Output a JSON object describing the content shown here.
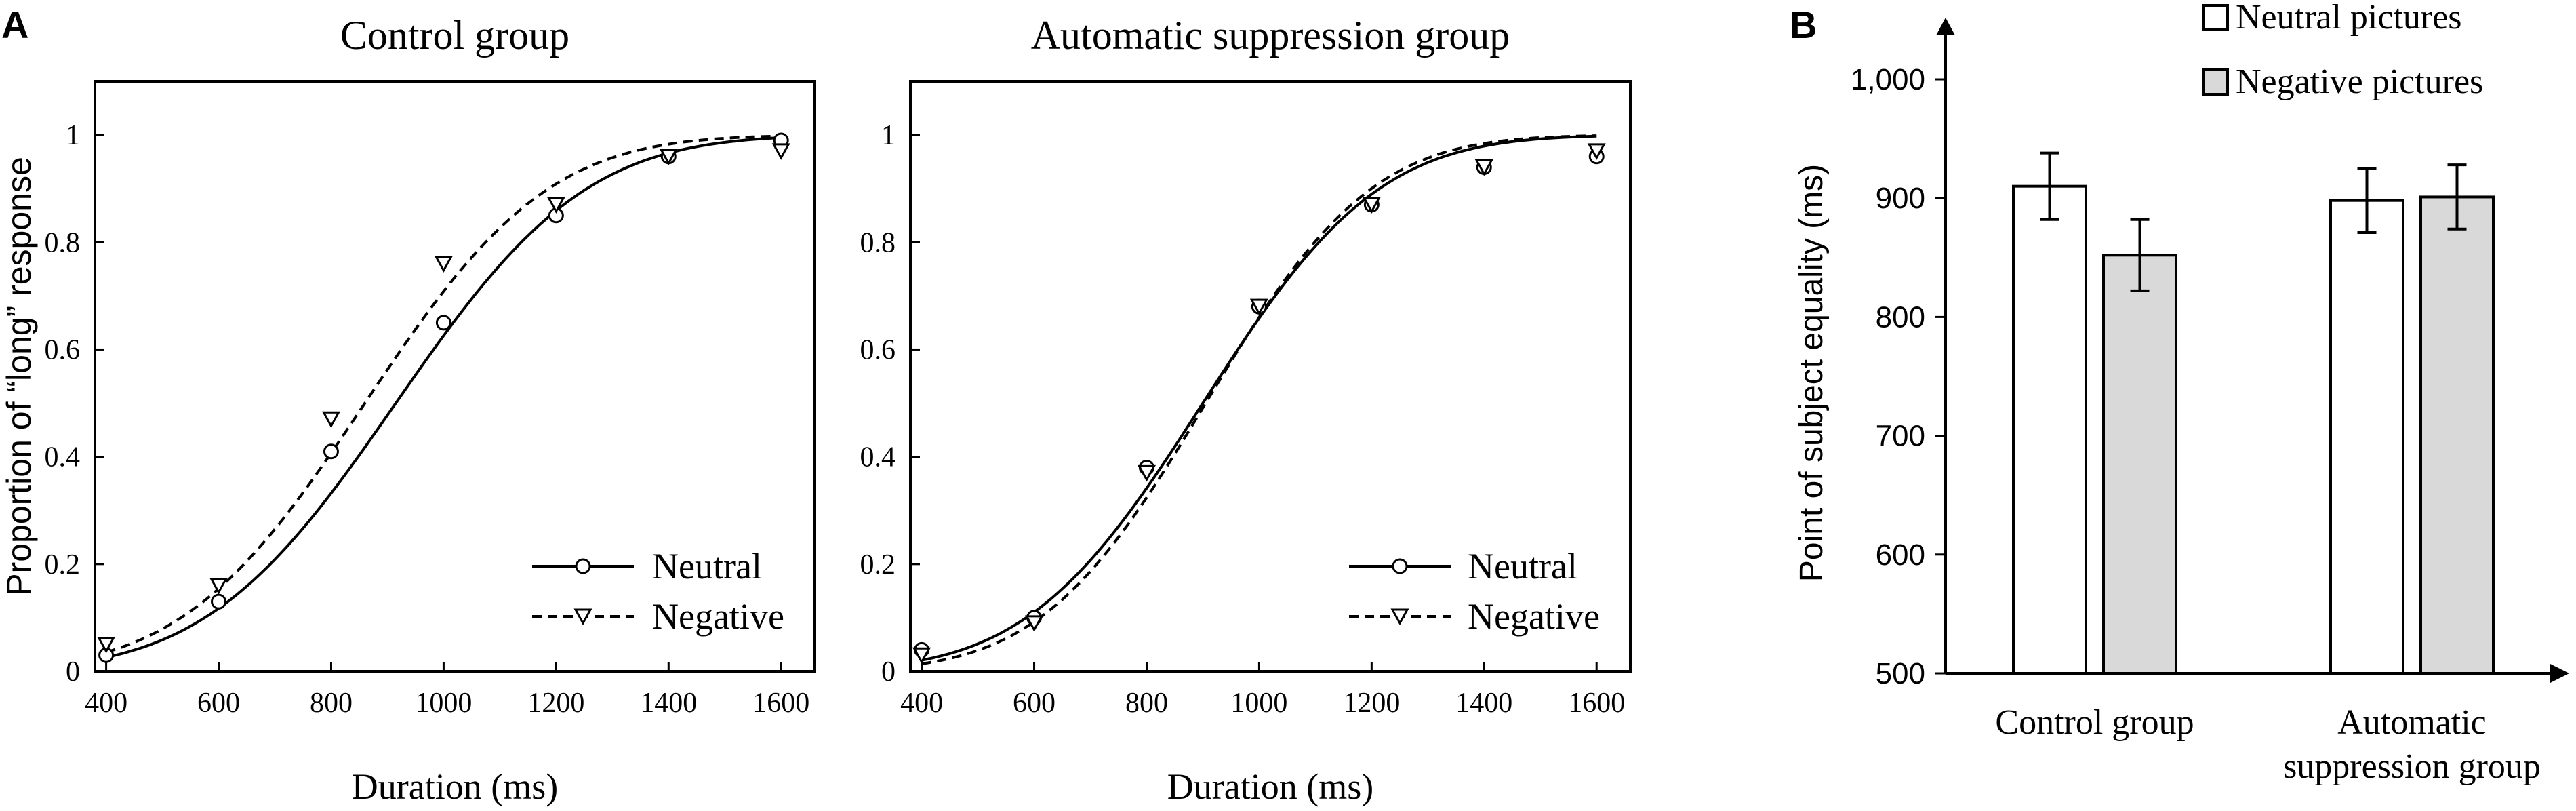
{
  "panel_labels": {
    "a": "A",
    "b": "B"
  },
  "chart_data": [
    {
      "type": "line",
      "title": "Control group",
      "xlabel": "Duration (ms)",
      "ylabel": "Proportion of “long” response",
      "xlim": [
        380,
        1660
      ],
      "ylim": [
        0,
        1.1
      ],
      "xticks": [
        400,
        600,
        800,
        1000,
        1200,
        1400,
        1600
      ],
      "yticks": [
        0,
        0.2,
        0.4,
        0.6,
        0.8,
        1
      ],
      "ytick_labels": [
        "0",
        "0.2",
        "0.4",
        "0.6",
        "0.8",
        "1"
      ],
      "legend_position": "bottom-right",
      "series": [
        {
          "name": "Neutral",
          "line_style": "solid",
          "marker": "circle",
          "points": [
            [
              400,
              0.03
            ],
            [
              600,
              0.13
            ],
            [
              800,
              0.41
            ],
            [
              1000,
              0.65
            ],
            [
              1200,
              0.85
            ],
            [
              1400,
              0.96
            ],
            [
              1600,
              0.99
            ]
          ],
          "fit": {
            "mu": 915,
            "sigma": 265
          }
        },
        {
          "name": "Negative",
          "line_style": "dashed",
          "marker": "triangle-down",
          "points": [
            [
              400,
              0.05
            ],
            [
              600,
              0.16
            ],
            [
              800,
              0.47
            ],
            [
              1000,
              0.76
            ],
            [
              1200,
              0.87
            ],
            [
              1400,
              0.96
            ],
            [
              1600,
              0.97
            ]
          ],
          "fit": {
            "mu": 860,
            "sigma": 255
          }
        }
      ]
    },
    {
      "type": "line",
      "title": "Automatic suppression group",
      "xlabel": "Duration (ms)",
      "ylabel": "",
      "xlim": [
        380,
        1660
      ],
      "ylim": [
        0,
        1.1
      ],
      "xticks": [
        400,
        600,
        800,
        1000,
        1200,
        1400,
        1600
      ],
      "yticks": [
        0,
        0.2,
        0.4,
        0.6,
        0.8,
        1
      ],
      "ytick_labels": [
        "0",
        "0.2",
        "0.4",
        "0.6",
        "0.8",
        "1"
      ],
      "legend_position": "bottom-right",
      "series": [
        {
          "name": "Neutral",
          "line_style": "solid",
          "marker": "circle",
          "points": [
            [
              400,
              0.04
            ],
            [
              600,
              0.1
            ],
            [
              800,
              0.38
            ],
            [
              1000,
              0.68
            ],
            [
              1200,
              0.87
            ],
            [
              1400,
              0.94
            ],
            [
              1600,
              0.96
            ]
          ],
          "fit": {
            "mu": 900,
            "sigma": 245
          }
        },
        {
          "name": "Negative",
          "line_style": "dashed",
          "marker": "triangle-down",
          "points": [
            [
              400,
              0.03
            ],
            [
              600,
              0.09
            ],
            [
              800,
              0.37
            ],
            [
              1000,
              0.68
            ],
            [
              1200,
              0.87
            ],
            [
              1400,
              0.94
            ],
            [
              1600,
              0.97
            ]
          ],
          "fit": {
            "mu": 905,
            "sigma": 230
          }
        }
      ]
    },
    {
      "type": "bar",
      "title": "",
      "xlabel": "",
      "ylabel": "Point of subject equality (ms)",
      "ylim": [
        500,
        1000
      ],
      "yticks": [
        500,
        600,
        700,
        800,
        900,
        1000
      ],
      "ytick_labels": [
        "500",
        "600",
        "700",
        "800",
        "900",
        "1,000"
      ],
      "categories": [
        [
          "Control group"
        ],
        [
          "Automatic",
          "suppression group"
        ]
      ],
      "legend_position": "top-right",
      "series": [
        {
          "name": "Neutral pictures",
          "color": "#ffffff",
          "values": [
            910,
            898
          ],
          "errors": [
            28,
            27
          ]
        },
        {
          "name": "Negative pictures",
          "color": "#d9d9d9",
          "values": [
            852,
            901
          ],
          "errors": [
            30,
            27
          ]
        }
      ]
    }
  ]
}
